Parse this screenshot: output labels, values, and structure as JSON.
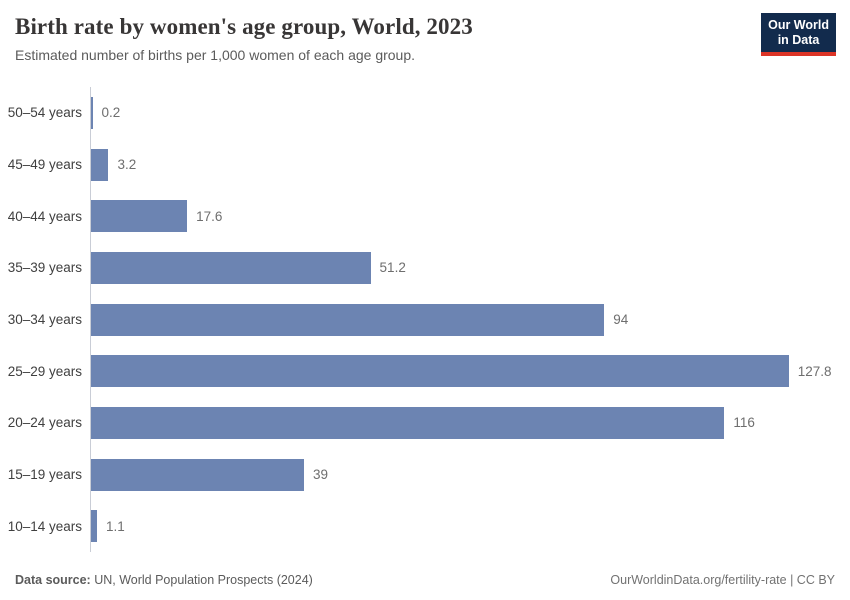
{
  "header": {
    "title": "Birth rate by women's age group, World, 2023",
    "subtitle": "Estimated number of births per 1,000 women of each age group."
  },
  "logo": {
    "line1": "Our World",
    "line2": "in Data",
    "bg_color": "#122b4d",
    "accent_color": "#dc3426"
  },
  "chart_data": {
    "type": "bar",
    "orientation": "horizontal",
    "title": "Birth rate by women's age group, World, 2023",
    "subtitle": "Estimated number of births per 1,000 women of each age group.",
    "xlabel": "",
    "ylabel": "",
    "xlim": [
      0,
      128
    ],
    "grid": false,
    "legend": false,
    "bar_color": "#6c84b2",
    "categories": [
      "50–54 years",
      "45–49 years",
      "40–44 years",
      "35–39 years",
      "30–34 years",
      "25–29 years",
      "20–24 years",
      "15–19 years",
      "10–14 years"
    ],
    "values": [
      0.2,
      3.2,
      17.6,
      51.2,
      94,
      127.8,
      116,
      39,
      1.1
    ],
    "value_labels": [
      "0.2",
      "3.2",
      "17.6",
      "51.2",
      "94",
      "127.8",
      "116",
      "39",
      "1.1"
    ]
  },
  "footer": {
    "source_label": "Data source:",
    "source_text": " UN, World Population Prospects (2024)",
    "link_text": "OurWorldinData.org/fertility-rate | CC BY"
  }
}
